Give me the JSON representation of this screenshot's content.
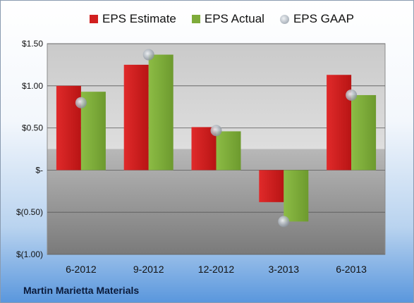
{
  "legend": {
    "estimate": "EPS Estimate",
    "actual": "EPS Actual",
    "gaap": "EPS GAAP"
  },
  "company": "Martin Marietta Materials",
  "colors": {
    "estimate": "#d11f1f",
    "actual": "#7eab3a",
    "gaap": "#b3bac2"
  },
  "chart_data": {
    "type": "bar",
    "categories": [
      "6-2012",
      "9-2012",
      "12-2012",
      "3-2013",
      "6-2013"
    ],
    "series": [
      {
        "name": "EPS Estimate",
        "values": [
          1.0,
          1.25,
          0.51,
          -0.38,
          1.13
        ]
      },
      {
        "name": "EPS Actual",
        "values": [
          0.93,
          1.37,
          0.46,
          -0.61,
          0.89
        ]
      },
      {
        "name": "EPS GAAP",
        "values": [
          0.8,
          1.37,
          0.47,
          -0.61,
          0.89
        ],
        "marker": "circle"
      }
    ],
    "ylim": [
      -1.0,
      1.5
    ],
    "yticks": [
      1.5,
      1.0,
      0.5,
      0,
      -0.5,
      -1.0
    ],
    "ytick_labels": [
      "$1.50",
      "$1.00",
      "$0.50",
      "$-",
      "$(0.50)",
      "$(1.00)"
    ],
    "grid": true,
    "legend_position": "top"
  }
}
